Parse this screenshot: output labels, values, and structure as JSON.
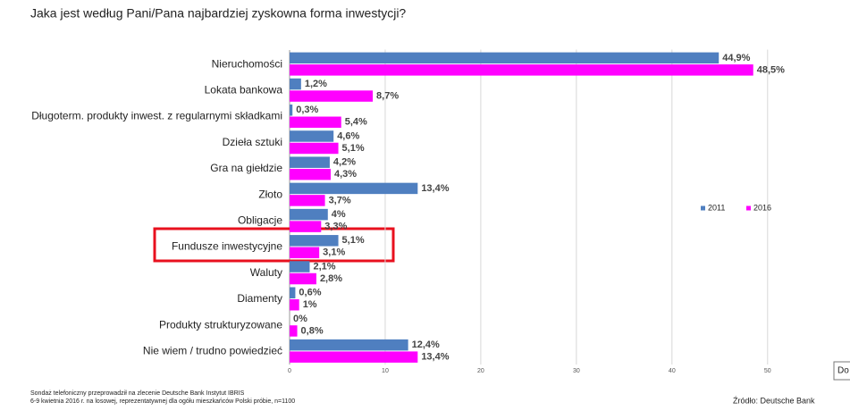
{
  "chart_data": {
    "type": "bar",
    "orientation": "horizontal",
    "title": "Jaka jest według Pani/Pana najbardziej zyskowna forma inwestycji?",
    "categories": [
      "Nieruchomości",
      "Lokata bankowa",
      "Długoterm. produkty inwest. z regularnymi składkami",
      "Dzieła sztuki",
      "Gra na giełdzie",
      "Złoto",
      "Obligacje",
      "Fundusze inwestycyjne",
      "Waluty",
      "Diamenty",
      "Produkty strukturyzowane",
      "Nie wiem / trudno powiedzieć"
    ],
    "series": [
      {
        "name": "2011",
        "color": "#4f7fc0",
        "values": [
          44.9,
          1.2,
          0.3,
          4.6,
          4.2,
          13.4,
          4,
          5.1,
          2.1,
          0.6,
          0,
          12.4
        ],
        "value_labels": [
          "44,9%",
          "1,2%",
          "0,3%",
          "4,6%",
          "4,2%",
          "13,4%",
          "4%",
          "5,1%",
          "2,1%",
          "0,6%",
          "0%",
          "12,4%"
        ]
      },
      {
        "name": "2016",
        "color": "#ff00ff",
        "values": [
          48.5,
          8.7,
          5.4,
          5.1,
          4.3,
          3.7,
          3.3,
          3.1,
          2.8,
          1,
          0.8,
          13.4
        ],
        "value_labels": [
          "48,5%",
          "8,7%",
          "5,4%",
          "5,1%",
          "4,3%",
          "3,7%",
          "3,3%",
          "3,1%",
          "2,8%",
          "1%",
          "0,8%",
          "13,4%"
        ]
      }
    ],
    "xlim": [
      0,
      57.5
    ],
    "xticks": [
      0,
      10,
      20,
      30,
      40,
      50
    ],
    "grid": true,
    "legend": "right",
    "footnote": [
      "Sondaż telefoniczny przeprowadził na zlecenie Deutsche Bank Instytut IBRIS",
      "6-9 kwietnia 2016 r. na losowej, reprezentatywnej dla ogółu mieszkańców Polski próbie, n=1100"
    ],
    "source": "Źródło: Deutsche Bank",
    "tooltip": "Do"
  }
}
